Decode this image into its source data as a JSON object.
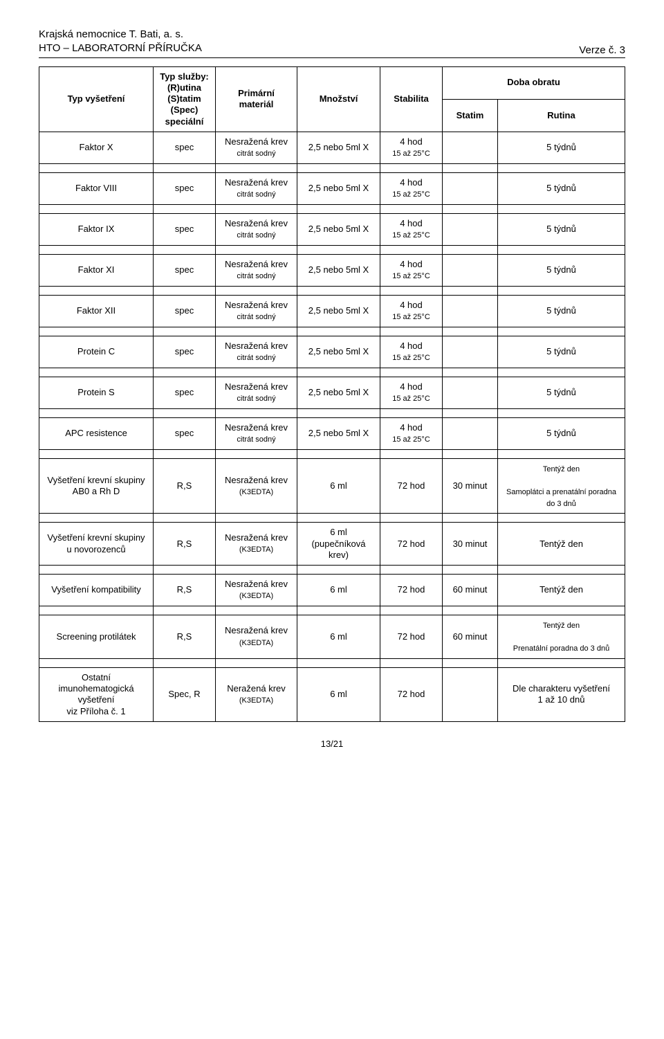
{
  "header": {
    "line1": "Krajská nemocnice T. Bati, a. s.",
    "line2": "HTO – LABORATORNÍ PŘÍRUČKA",
    "version": "Verze č. 3"
  },
  "columns": {
    "typ_vysetreni": "Typ vyšetření",
    "typ_sluzby": "Typ služby:\n(R)utina\n(S)tatim\n(Spec)\nspeciální",
    "primarni_material": "Primární materiál",
    "mnozstvi": "Množství",
    "stabilita": "Stabilita",
    "doba_obratu": "Doba obratu",
    "statim": "Statim",
    "rutina": "Rutina"
  },
  "common": {
    "material_nesrazena": "Nesražená krev",
    "material_nerazena": "Neražená krev",
    "material_sub_citrate": "citrát sodný",
    "material_sub_edta": "(K3EDTA)",
    "amount_25": "2,5 nebo 5ml X",
    "amount_6": "6 ml",
    "amount_6_pup": "6 ml\n(pupečníková krev)",
    "stab_4hod": "4 hod",
    "stab_15_25": "15 až 25°C",
    "stab_72": "72 hod",
    "rutina_5t": "5 týdnů",
    "rutina_tentyz": "Tentýž den",
    "rutina_samoplatci": "Samoplátci a prenatální poradna do 3 dnů",
    "rutina_prenatal": "Prenatální poradna do 3 dnů",
    "rutina_ostatni": "Dle charakteru vyšetření\n1 až 10 dnů",
    "statim_30": "30 minut",
    "statim_60": "60 minut"
  },
  "rows_top": [
    {
      "name": "Faktor X",
      "sluzba": "spec"
    },
    {
      "name": "Faktor VIII",
      "sluzba": "spec"
    },
    {
      "name": "Faktor IX",
      "sluzba": "spec"
    },
    {
      "name": "Faktor XI",
      "sluzba": "spec"
    },
    {
      "name": "Faktor XII",
      "sluzba": "spec"
    },
    {
      "name": "Protein C",
      "sluzba": "spec"
    },
    {
      "name": "Protein S",
      "sluzba": "spec"
    },
    {
      "name": "APC resistence",
      "sluzba": "spec"
    }
  ],
  "rows_bottom": {
    "r1": {
      "name": "Vyšetření krevní skupiny\nAB0 a Rh D",
      "sluzba": "R,S"
    },
    "r2": {
      "name": "Vyšetření krevní skupiny\nu novorozenců",
      "sluzba": "R,S"
    },
    "r3": {
      "name": "Vyšetření kompatibility",
      "sluzba": "R,S"
    },
    "r4": {
      "name": "Screening protilátek",
      "sluzba": "R,S"
    },
    "r5": {
      "name": "Ostatní imunohematogická vyšetření\nviz Příloha č. 1",
      "sluzba": "Spec, R"
    }
  },
  "footer": "13/21"
}
